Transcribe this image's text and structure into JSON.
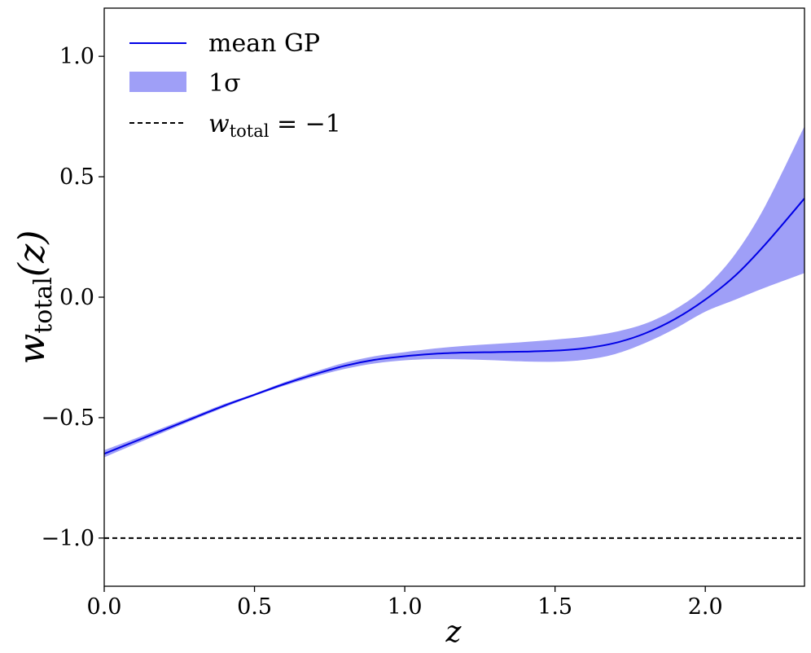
{
  "chart_data": {
    "type": "line",
    "title": "",
    "xlabel": "z",
    "ylabel": "w_total(z)",
    "ylabel_main": "w",
    "ylabel_sub": "total",
    "ylabel_arg": "(z)",
    "xlim": [
      0.0,
      2.33
    ],
    "ylim": [
      -1.2,
      1.2
    ],
    "x_ticks": [
      0.0,
      0.5,
      1.0,
      1.5,
      2.0
    ],
    "x_tick_labels": [
      "0.0",
      "0.5",
      "1.0",
      "1.5",
      "2.0"
    ],
    "y_ticks": [
      -1.0,
      -0.5,
      0.0,
      0.5,
      1.0
    ],
    "y_tick_labels": [
      "−1.0",
      "−0.5",
      "0.0",
      "0.5",
      "1.0"
    ],
    "grid": false,
    "legend_position": "top-left",
    "legend": [
      {
        "label": "mean GP",
        "style": "line",
        "color": "#0000e6"
      },
      {
        "label": "1σ",
        "style": "band",
        "color": "#9f9ff7"
      },
      {
        "label_main": "w",
        "label_sub": "total",
        "label_rest": " = −1",
        "style": "dashed",
        "color": "#000000"
      }
    ],
    "series": [
      {
        "name": "mean GP",
        "color": "#0000e6",
        "x": [
          0.0,
          0.1,
          0.2,
          0.3,
          0.4,
          0.5,
          0.6,
          0.7,
          0.8,
          0.9,
          1.0,
          1.1,
          1.2,
          1.3,
          1.4,
          1.5,
          1.6,
          1.7,
          1.8,
          1.9,
          2.0,
          2.1,
          2.2,
          2.33
        ],
        "y": [
          -0.65,
          -0.6,
          -0.55,
          -0.5,
          -0.45,
          -0.405,
          -0.36,
          -0.32,
          -0.285,
          -0.26,
          -0.245,
          -0.235,
          -0.23,
          -0.228,
          -0.226,
          -0.222,
          -0.212,
          -0.19,
          -0.15,
          -0.09,
          -0.01,
          0.09,
          0.22,
          0.41
        ]
      }
    ],
    "band": {
      "name": "1σ",
      "color": "#9f9ff7",
      "x": [
        0.0,
        0.1,
        0.2,
        0.3,
        0.4,
        0.5,
        0.6,
        0.7,
        0.8,
        0.9,
        1.0,
        1.1,
        1.2,
        1.3,
        1.4,
        1.5,
        1.6,
        1.7,
        1.8,
        1.9,
        2.0,
        2.1,
        2.2,
        2.33
      ],
      "lower": [
        -0.665,
        -0.612,
        -0.56,
        -0.508,
        -0.457,
        -0.41,
        -0.367,
        -0.33,
        -0.298,
        -0.275,
        -0.262,
        -0.257,
        -0.258,
        -0.262,
        -0.267,
        -0.268,
        -0.26,
        -0.236,
        -0.19,
        -0.13,
        -0.06,
        -0.01,
        0.04,
        0.1
      ],
      "upper": [
        -0.635,
        -0.588,
        -0.54,
        -0.492,
        -0.443,
        -0.4,
        -0.353,
        -0.31,
        -0.272,
        -0.245,
        -0.228,
        -0.213,
        -0.202,
        -0.194,
        -0.186,
        -0.176,
        -0.164,
        -0.144,
        -0.11,
        -0.05,
        0.04,
        0.18,
        0.38,
        0.71
      ]
    },
    "reference_line": {
      "y": -1.0,
      "style": "dashed",
      "color": "#000000"
    }
  }
}
